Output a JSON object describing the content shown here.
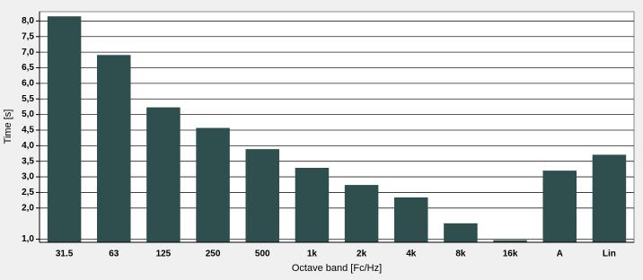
{
  "chart_data": {
    "type": "bar",
    "y_label": "Time [s]",
    "x_label": "Octave band [Fc/Hz]",
    "categories": [
      "31.5",
      "63",
      "125",
      "250",
      "500",
      "1k",
      "2k",
      "4k",
      "8k",
      "16k",
      "A",
      "Lin"
    ],
    "values": [
      8.15,
      6.91,
      5.23,
      4.57,
      3.89,
      3.29,
      2.74,
      2.34,
      1.51,
      0.97,
      3.2,
      3.71
    ],
    "color": "#2f4f4f",
    "ylim": [
      0.9,
      8.3
    ],
    "yticks": [
      {
        "value": 1,
        "label": "1,0"
      },
      {
        "value": 2,
        "label": "2,0"
      },
      {
        "value": 2.5,
        "label": "2,5"
      },
      {
        "value": 3,
        "label": "3,0"
      },
      {
        "value": 3.5,
        "label": "3,5"
      },
      {
        "value": 4,
        "label": "4,0"
      },
      {
        "value": 4.5,
        "label": "4,5"
      },
      {
        "value": 5,
        "label": "5,0"
      },
      {
        "value": 5.5,
        "label": "5,5"
      },
      {
        "value": 6,
        "label": "6,0"
      },
      {
        "value": 6.5,
        "label": "6,5"
      },
      {
        "value": 7,
        "label": "7,0"
      },
      {
        "value": 7.5,
        "label": "7,5"
      },
      {
        "value": 8,
        "label": "8,0"
      }
    ],
    "grid": true
  }
}
